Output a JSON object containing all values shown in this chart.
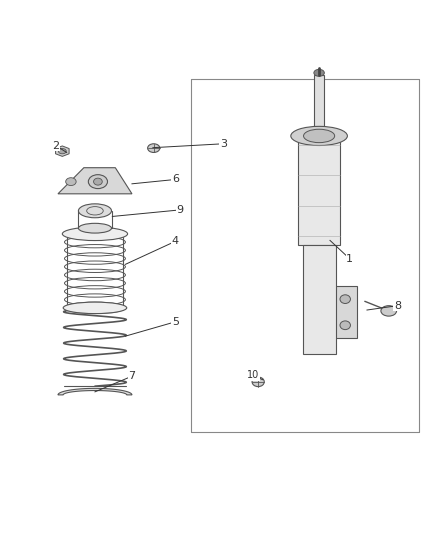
{
  "background_color": "#ffffff",
  "line_color": "#555555",
  "label_color": "#333333",
  "figsize": [
    4.38,
    5.33
  ],
  "dpi": 100,
  "label_fontsize": 8
}
